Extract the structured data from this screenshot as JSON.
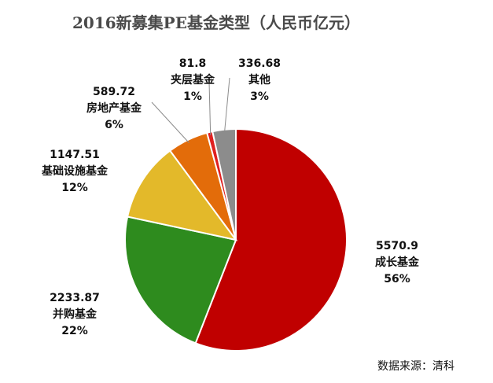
{
  "chart_data": {
    "type": "pie",
    "title": "2016新募集PE基金类型（人民币亿元）",
    "source": "数据来源：清科",
    "slices": [
      {
        "name": "成长基金",
        "value": 5570.9,
        "value_label": "5570.9",
        "percent": "56%",
        "color": "#C00000"
      },
      {
        "name": "并购基金",
        "value": 2233.87,
        "value_label": "2233.87",
        "percent": "22%",
        "color": "#2E8B1E"
      },
      {
        "name": "基础设施基金",
        "value": 1147.51,
        "value_label": "1147.51",
        "percent": "12%",
        "color": "#E3B92A"
      },
      {
        "name": "房地产基金",
        "value": 589.72,
        "value_label": "589.72",
        "percent": "6%",
        "color": "#E36C0A"
      },
      {
        "name": "夹层基金",
        "value": 81.8,
        "value_label": "81.8",
        "percent": "1%",
        "color": "#E02020"
      },
      {
        "name": "其他",
        "value": 336.68,
        "value_label": "336.68",
        "percent": "3%",
        "color": "#8C8C8C"
      }
    ]
  }
}
